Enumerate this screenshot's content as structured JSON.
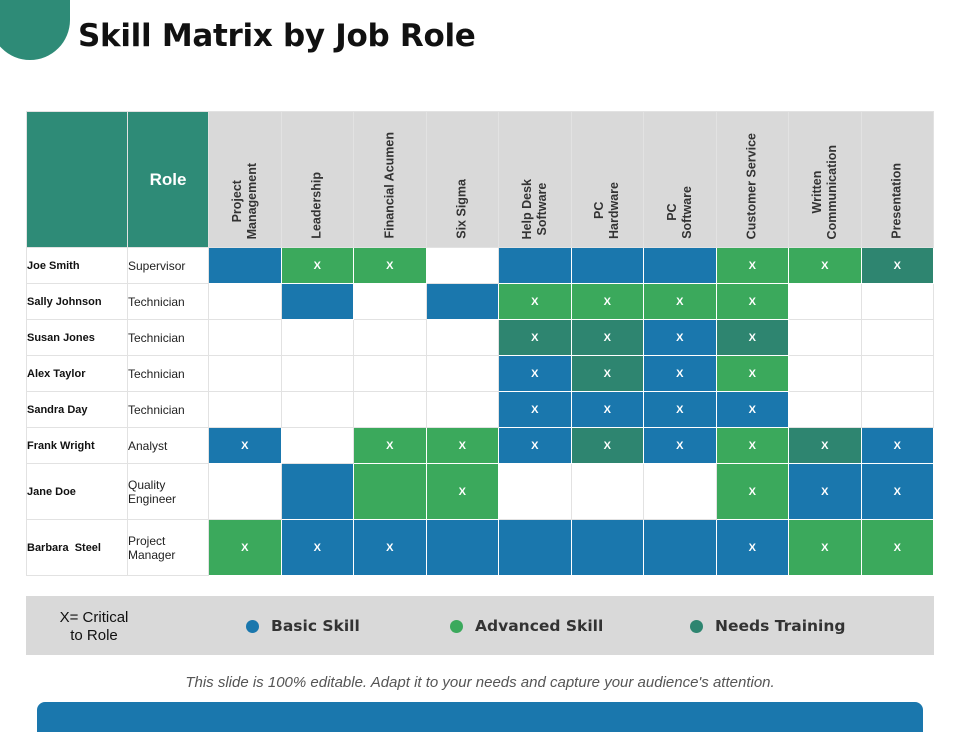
{
  "title": "Skill Matrix by Job Role",
  "role_header": "Role",
  "skills": [
    "Project\nManagement",
    "Leadership",
    "Financial Acumen",
    "Six Sigma",
    "Help Desk\nSoftware",
    "PC\nHardware",
    "PC\nSoftware",
    "Customer Service",
    "Written\nCommunication",
    "Presentation"
  ],
  "colors": {
    "basic": "#1a77ad",
    "advanced": "#3ba95c",
    "needs_training": "#2e8570",
    "header_teal": "#2e8b77"
  },
  "employees": [
    {
      "name": "Joe Smith",
      "role": "Supervisor",
      "cells": [
        [
          "basic",
          ""
        ],
        [
          "adv",
          "X"
        ],
        [
          "adv",
          "X"
        ],
        [
          "none",
          ""
        ],
        [
          "basic",
          ""
        ],
        [
          "basic",
          ""
        ],
        [
          "basic",
          ""
        ],
        [
          "adv",
          "X"
        ],
        [
          "adv",
          "X"
        ],
        [
          "train",
          "X"
        ]
      ]
    },
    {
      "name": "Sally Johnson",
      "role": "Technician",
      "cells": [
        [
          "none",
          ""
        ],
        [
          "basic",
          ""
        ],
        [
          "none",
          ""
        ],
        [
          "basic",
          ""
        ],
        [
          "adv",
          "X"
        ],
        [
          "adv",
          "X"
        ],
        [
          "adv",
          "X"
        ],
        [
          "adv",
          "X"
        ],
        [
          "none",
          ""
        ],
        [
          "none",
          ""
        ]
      ]
    },
    {
      "name": "Susan Jones",
      "role": "Technician",
      "cells": [
        [
          "none",
          ""
        ],
        [
          "none",
          ""
        ],
        [
          "none",
          ""
        ],
        [
          "none",
          ""
        ],
        [
          "train",
          "X"
        ],
        [
          "train",
          "X"
        ],
        [
          "basic",
          "X"
        ],
        [
          "train",
          "X"
        ],
        [
          "none",
          ""
        ],
        [
          "none",
          ""
        ]
      ]
    },
    {
      "name": "Alex Taylor",
      "role": "Technician",
      "cells": [
        [
          "none",
          ""
        ],
        [
          "none",
          ""
        ],
        [
          "none",
          ""
        ],
        [
          "none",
          ""
        ],
        [
          "basic",
          "X"
        ],
        [
          "train",
          "X"
        ],
        [
          "basic",
          "X"
        ],
        [
          "adv",
          "X"
        ],
        [
          "none",
          ""
        ],
        [
          "none",
          ""
        ]
      ]
    },
    {
      "name": "Sandra Day",
      "role": "Technician",
      "cells": [
        [
          "none",
          ""
        ],
        [
          "none",
          ""
        ],
        [
          "none",
          ""
        ],
        [
          "none",
          ""
        ],
        [
          "basic",
          "X"
        ],
        [
          "basic",
          "X"
        ],
        [
          "basic",
          "X"
        ],
        [
          "basic",
          "X"
        ],
        [
          "none",
          ""
        ],
        [
          "none",
          ""
        ]
      ]
    },
    {
      "name": "Frank Wright",
      "role": "Analyst",
      "cells": [
        [
          "basic",
          "X"
        ],
        [
          "none",
          ""
        ],
        [
          "adv",
          "X"
        ],
        [
          "adv",
          "X"
        ],
        [
          "basic",
          "X"
        ],
        [
          "train",
          "X"
        ],
        [
          "basic",
          "X"
        ],
        [
          "adv",
          "X"
        ],
        [
          "train",
          "X"
        ],
        [
          "basic",
          "X"
        ]
      ]
    },
    {
      "name": "Jane Doe",
      "role": "Quality\nEngineer",
      "tall": true,
      "cells": [
        [
          "none",
          ""
        ],
        [
          "basic",
          ""
        ],
        [
          "adv",
          ""
        ],
        [
          "adv",
          "X"
        ],
        [
          "none",
          ""
        ],
        [
          "none",
          ""
        ],
        [
          "none",
          ""
        ],
        [
          "adv",
          "X"
        ],
        [
          "basic",
          "X"
        ],
        [
          "basic",
          "X"
        ]
      ]
    },
    {
      "name": "Barbara  Steel",
      "role": "Project\nManager",
      "tall": true,
      "cells": [
        [
          "adv",
          "X"
        ],
        [
          "basic",
          "X"
        ],
        [
          "basic",
          "X"
        ],
        [
          "basic",
          ""
        ],
        [
          "basic",
          ""
        ],
        [
          "basic",
          ""
        ],
        [
          "basic",
          ""
        ],
        [
          "basic",
          "X"
        ],
        [
          "adv",
          "X"
        ],
        [
          "adv",
          "X"
        ]
      ]
    }
  ],
  "legend": {
    "critical": "X= Critical\nto Role",
    "basic": "Basic Skill",
    "advanced": "Advanced Skill",
    "needs_training": "Needs Training"
  },
  "footer": "This slide is 100% editable. Adapt it to your needs and capture your audience's attention."
}
